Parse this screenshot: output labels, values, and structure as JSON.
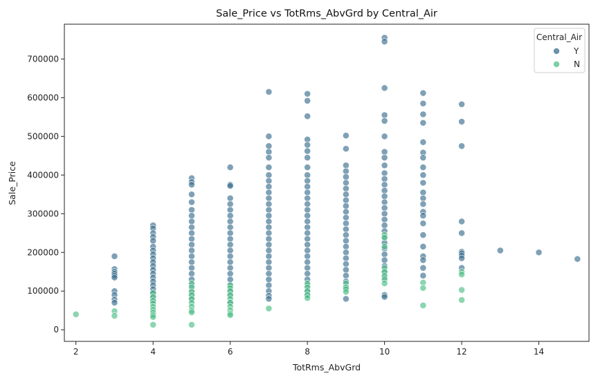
{
  "chart_data": {
    "type": "scatter",
    "title": "Sale_Price vs TotRms_AbvGrd by Central_Air",
    "xlabel": "TotRms_AbvGrd",
    "ylabel": "Sale_Price",
    "xlim": [
      1.7,
      15.3
    ],
    "ylim": [
      -30000,
      790000
    ],
    "xticks": [
      2,
      4,
      6,
      8,
      10,
      12,
      14
    ],
    "xtick_labels": [
      "2",
      "4",
      "6",
      "8",
      "10",
      "12",
      "14"
    ],
    "yticks": [
      0,
      100000,
      200000,
      300000,
      400000,
      500000,
      600000,
      700000
    ],
    "ytick_labels": [
      "0",
      "100000",
      "200000",
      "300000",
      "400000",
      "500000",
      "600000",
      "700000"
    ],
    "grid": false,
    "legend": {
      "title": "Central_Air",
      "position": "top-right"
    },
    "series": [
      {
        "name": "Y",
        "color": "#3b6e8f",
        "points": [
          [
            3,
            190000
          ],
          [
            3,
            157000
          ],
          [
            3,
            150000
          ],
          [
            3,
            145000
          ],
          [
            3,
            140000
          ],
          [
            3,
            135000
          ],
          [
            3,
            100000
          ],
          [
            3,
            90000
          ],
          [
            3,
            78000
          ],
          [
            3,
            70000
          ],
          [
            4,
            270000
          ],
          [
            4,
            262000
          ],
          [
            4,
            250000
          ],
          [
            4,
            240000
          ],
          [
            4,
            230000
          ],
          [
            4,
            215000
          ],
          [
            4,
            205000
          ],
          [
            4,
            195000
          ],
          [
            4,
            185000
          ],
          [
            4,
            175000
          ],
          [
            4,
            165000
          ],
          [
            4,
            155000
          ],
          [
            4,
            145000
          ],
          [
            4,
            135000
          ],
          [
            4,
            125000
          ],
          [
            4,
            115000
          ],
          [
            4,
            105000
          ],
          [
            4,
            95000
          ],
          [
            4,
            85000
          ],
          [
            4,
            75000
          ],
          [
            5,
            392000
          ],
          [
            5,
            382000
          ],
          [
            5,
            375000
          ],
          [
            5,
            350000
          ],
          [
            5,
            330000
          ],
          [
            5,
            310000
          ],
          [
            5,
            295000
          ],
          [
            5,
            280000
          ],
          [
            5,
            265000
          ],
          [
            5,
            250000
          ],
          [
            5,
            235000
          ],
          [
            5,
            220000
          ],
          [
            5,
            205000
          ],
          [
            5,
            190000
          ],
          [
            5,
            175000
          ],
          [
            5,
            160000
          ],
          [
            5,
            145000
          ],
          [
            5,
            130000
          ],
          [
            5,
            115000
          ],
          [
            5,
            100000
          ],
          [
            5,
            88000
          ],
          [
            5,
            78000
          ],
          [
            6,
            420000
          ],
          [
            6,
            375000
          ],
          [
            6,
            372000
          ],
          [
            6,
            340000
          ],
          [
            6,
            325000
          ],
          [
            6,
            310000
          ],
          [
            6,
            295000
          ],
          [
            6,
            280000
          ],
          [
            6,
            265000
          ],
          [
            6,
            250000
          ],
          [
            6,
            235000
          ],
          [
            6,
            220000
          ],
          [
            6,
            205000
          ],
          [
            6,
            190000
          ],
          [
            6,
            175000
          ],
          [
            6,
            160000
          ],
          [
            6,
            145000
          ],
          [
            6,
            130000
          ],
          [
            6,
            115000
          ],
          [
            6,
            100000
          ],
          [
            6,
            88000
          ],
          [
            6,
            70000
          ],
          [
            7,
            615000
          ],
          [
            7,
            500000
          ],
          [
            7,
            475000
          ],
          [
            7,
            460000
          ],
          [
            7,
            445000
          ],
          [
            7,
            420000
          ],
          [
            7,
            400000
          ],
          [
            7,
            385000
          ],
          [
            7,
            370000
          ],
          [
            7,
            355000
          ],
          [
            7,
            340000
          ],
          [
            7,
            325000
          ],
          [
            7,
            310000
          ],
          [
            7,
            295000
          ],
          [
            7,
            280000
          ],
          [
            7,
            265000
          ],
          [
            7,
            250000
          ],
          [
            7,
            235000
          ],
          [
            7,
            220000
          ],
          [
            7,
            205000
          ],
          [
            7,
            190000
          ],
          [
            7,
            175000
          ],
          [
            7,
            160000
          ],
          [
            7,
            145000
          ],
          [
            7,
            130000
          ],
          [
            7,
            115000
          ],
          [
            7,
            100000
          ],
          [
            7,
            88000
          ],
          [
            7,
            80000
          ],
          [
            8,
            610000
          ],
          [
            8,
            592000
          ],
          [
            8,
            552000
          ],
          [
            8,
            492000
          ],
          [
            8,
            478000
          ],
          [
            8,
            462000
          ],
          [
            8,
            445000
          ],
          [
            8,
            420000
          ],
          [
            8,
            400000
          ],
          [
            8,
            385000
          ],
          [
            8,
            370000
          ],
          [
            8,
            355000
          ],
          [
            8,
            340000
          ],
          [
            8,
            325000
          ],
          [
            8,
            310000
          ],
          [
            8,
            295000
          ],
          [
            8,
            280000
          ],
          [
            8,
            265000
          ],
          [
            8,
            250000
          ],
          [
            8,
            235000
          ],
          [
            8,
            220000
          ],
          [
            8,
            205000
          ],
          [
            8,
            190000
          ],
          [
            8,
            175000
          ],
          [
            8,
            160000
          ],
          [
            8,
            145000
          ],
          [
            8,
            130000
          ],
          [
            8,
            115000
          ],
          [
            8,
            100000
          ],
          [
            8,
            90000
          ],
          [
            9,
            502000
          ],
          [
            9,
            468000
          ],
          [
            9,
            425000
          ],
          [
            9,
            410000
          ],
          [
            9,
            395000
          ],
          [
            9,
            380000
          ],
          [
            9,
            365000
          ],
          [
            9,
            350000
          ],
          [
            9,
            335000
          ],
          [
            9,
            320000
          ],
          [
            9,
            305000
          ],
          [
            9,
            290000
          ],
          [
            9,
            275000
          ],
          [
            9,
            260000
          ],
          [
            9,
            245000
          ],
          [
            9,
            230000
          ],
          [
            9,
            215000
          ],
          [
            9,
            200000
          ],
          [
            9,
            185000
          ],
          [
            9,
            170000
          ],
          [
            9,
            155000
          ],
          [
            9,
            140000
          ],
          [
            9,
            125000
          ],
          [
            9,
            110000
          ],
          [
            9,
            80000
          ],
          [
            10,
            755000
          ],
          [
            10,
            745000
          ],
          [
            10,
            625000
          ],
          [
            10,
            555000
          ],
          [
            10,
            540000
          ],
          [
            10,
            500000
          ],
          [
            10,
            460000
          ],
          [
            10,
            445000
          ],
          [
            10,
            425000
          ],
          [
            10,
            405000
          ],
          [
            10,
            390000
          ],
          [
            10,
            375000
          ],
          [
            10,
            360000
          ],
          [
            10,
            345000
          ],
          [
            10,
            330000
          ],
          [
            10,
            315000
          ],
          [
            10,
            300000
          ],
          [
            10,
            285000
          ],
          [
            10,
            270000
          ],
          [
            10,
            255000
          ],
          [
            10,
            240000
          ],
          [
            10,
            225000
          ],
          [
            10,
            210000
          ],
          [
            10,
            195000
          ],
          [
            10,
            180000
          ],
          [
            10,
            165000
          ],
          [
            10,
            150000
          ],
          [
            10,
            135000
          ],
          [
            10,
            90000
          ],
          [
            10,
            85000
          ],
          [
            11,
            612000
          ],
          [
            11,
            585000
          ],
          [
            11,
            557000
          ],
          [
            11,
            535000
          ],
          [
            11,
            485000
          ],
          [
            11,
            458000
          ],
          [
            11,
            445000
          ],
          [
            11,
            420000
          ],
          [
            11,
            400000
          ],
          [
            11,
            380000
          ],
          [
            11,
            355000
          ],
          [
            11,
            340000
          ],
          [
            11,
            325000
          ],
          [
            11,
            305000
          ],
          [
            11,
            295000
          ],
          [
            11,
            275000
          ],
          [
            11,
            245000
          ],
          [
            11,
            215000
          ],
          [
            11,
            190000
          ],
          [
            11,
            180000
          ],
          [
            11,
            160000
          ],
          [
            11,
            140000
          ],
          [
            12,
            583000
          ],
          [
            12,
            538000
          ],
          [
            12,
            475000
          ],
          [
            12,
            280000
          ],
          [
            12,
            250000
          ],
          [
            12,
            202000
          ],
          [
            12,
            198000
          ],
          [
            12,
            192000
          ],
          [
            12,
            185000
          ],
          [
            12,
            160000
          ],
          [
            13,
            205000
          ],
          [
            14,
            200000
          ],
          [
            15,
            183000
          ]
        ]
      },
      {
        "name": "N",
        "color": "#4dbf86",
        "points": [
          [
            2,
            40000
          ],
          [
            3,
            48000
          ],
          [
            3,
            36000
          ],
          [
            4,
            95000
          ],
          [
            4,
            85000
          ],
          [
            4,
            75000
          ],
          [
            4,
            68000
          ],
          [
            4,
            60000
          ],
          [
            4,
            52000
          ],
          [
            4,
            45000
          ],
          [
            4,
            38000
          ],
          [
            4,
            33000
          ],
          [
            4,
            13000
          ],
          [
            5,
            120000
          ],
          [
            5,
            110000
          ],
          [
            5,
            98000
          ],
          [
            5,
            90000
          ],
          [
            5,
            80000
          ],
          [
            5,
            70000
          ],
          [
            5,
            60000
          ],
          [
            5,
            50000
          ],
          [
            5,
            45000
          ],
          [
            5,
            13000
          ],
          [
            6,
            115000
          ],
          [
            6,
            108000
          ],
          [
            6,
            100000
          ],
          [
            6,
            90000
          ],
          [
            6,
            80000
          ],
          [
            6,
            70000
          ],
          [
            6,
            60000
          ],
          [
            6,
            50000
          ],
          [
            6,
            42000
          ],
          [
            6,
            38000
          ],
          [
            7,
            55000
          ],
          [
            8,
            120000
          ],
          [
            8,
            110000
          ],
          [
            8,
            100000
          ],
          [
            8,
            90000
          ],
          [
            8,
            82000
          ],
          [
            9,
            120000
          ],
          [
            9,
            110000
          ],
          [
            9,
            105000
          ],
          [
            9,
            98000
          ],
          [
            10,
            245000
          ],
          [
            10,
            238000
          ],
          [
            10,
            215000
          ],
          [
            10,
            160000
          ],
          [
            10,
            150000
          ],
          [
            10,
            140000
          ],
          [
            10,
            130000
          ],
          [
            10,
            120000
          ],
          [
            11,
            122000
          ],
          [
            11,
            108000
          ],
          [
            11,
            63000
          ],
          [
            12,
            150000
          ],
          [
            12,
            143000
          ],
          [
            12,
            103000
          ],
          [
            12,
            77000
          ]
        ]
      }
    ]
  }
}
